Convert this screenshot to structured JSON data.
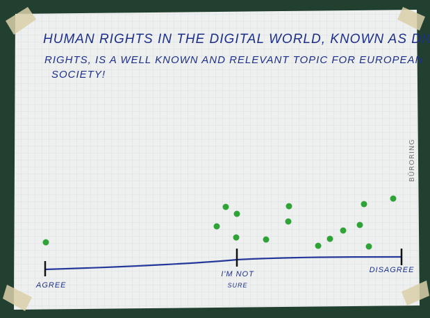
{
  "poster": {
    "statement_lines": [
      "HUMAN RIGHTS IN THE DIGITAL WORLD, KNOWN AS DIGITAL",
      "RIGHTS, IS A WELL KNOWN AND RELEVANT TOPIC FOR EUROPEAN",
      "SOCIETY!"
    ],
    "scale": {
      "left": "AGREE",
      "middle_lines": [
        "I'M NOT",
        "SURE"
      ],
      "right": "DISAGREE"
    },
    "brand": "BÜRORING"
  }
}
